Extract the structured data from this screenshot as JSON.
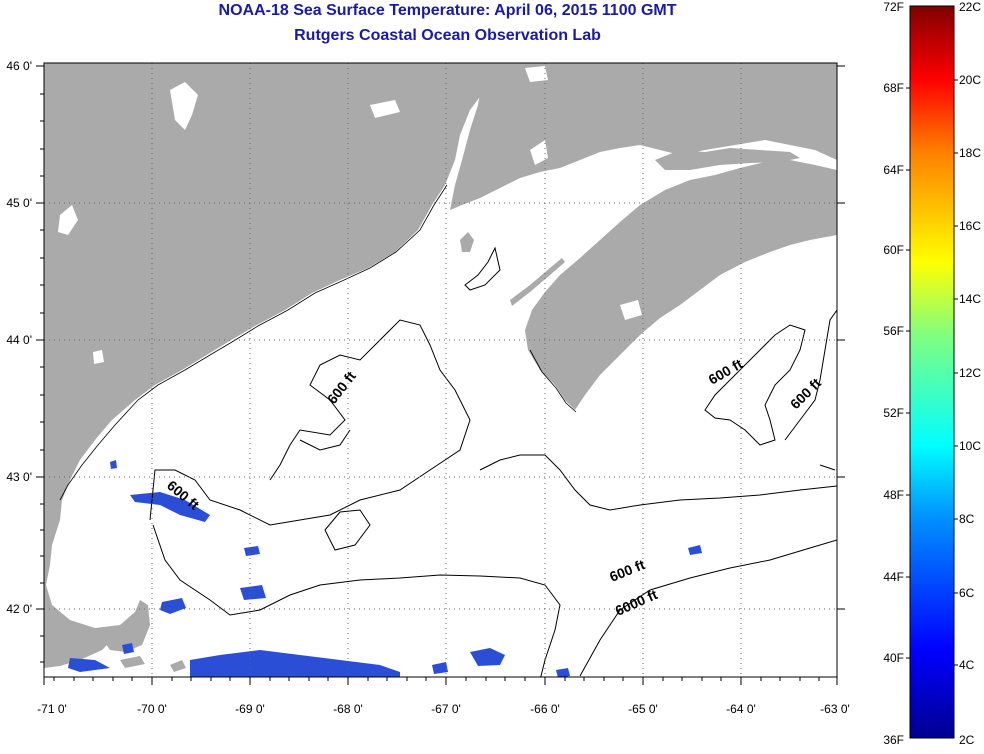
{
  "header": {
    "title_line1": "NOAA-18 Sea Surface Temperature:  April 06, 2015 1100 GMT",
    "title_line2": "Rutgers Coastal Ocean Observation Lab"
  },
  "map": {
    "lon_ticks": [
      "-71 0'",
      "-70 0'",
      "-69 0'",
      "-68 0'",
      "-67 0'",
      "-66 0'",
      "-65 0'",
      "-64 0'",
      "-63 0'"
    ],
    "lat_ticks": [
      "46 0'",
      "45 0'",
      "44 0'",
      "43 0'",
      "42 0'"
    ],
    "contour_labels": [
      "600 ft",
      "600 ft",
      "600 ft",
      "600 ft",
      "600 ft",
      "6000 ft"
    ],
    "colors": {
      "land": "#aaaaaa",
      "water": "#ffffff",
      "cold_water": "#2a4fd6"
    }
  },
  "colorbar": {
    "fahrenheit": [
      "72F",
      "68F",
      "64F",
      "60F",
      "56F",
      "52F",
      "48F",
      "44F",
      "40F",
      "36F"
    ],
    "celsius": [
      "22C",
      "20C",
      "18C",
      "16C",
      "14C",
      "12C",
      "10C",
      "8C",
      "6C",
      "4C",
      "2C"
    ]
  }
}
